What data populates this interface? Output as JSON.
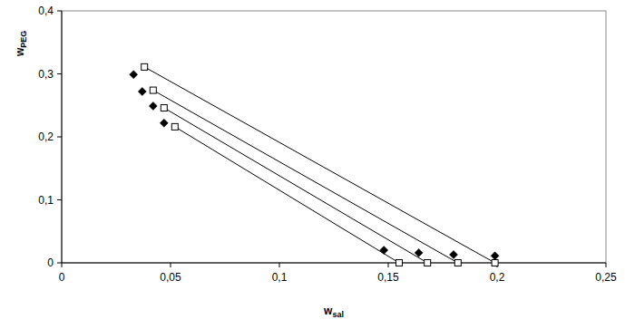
{
  "chart_data": {
    "type": "scatter",
    "xlabel": "wsal",
    "ylabel": "wPEG",
    "xlim": [
      0,
      0.25
    ],
    "ylim": [
      0,
      0.4
    ],
    "xticks": [
      0,
      {
        "value": 0.05,
        "label": "0,05"
      },
      {
        "value": 0.1,
        "label": "0,1"
      },
      {
        "value": 0.15,
        "label": "0,15"
      },
      {
        "value": 0.2,
        "label": "0,2"
      },
      {
        "value": 0.25,
        "label": "0,25"
      }
    ],
    "yticks": [
      0,
      {
        "value": 0.1,
        "label": "0,1"
      },
      {
        "value": 0.2,
        "label": "0,2"
      },
      {
        "value": 0.3,
        "label": "0,3"
      },
      {
        "value": 0.4,
        "label": "0,4"
      }
    ],
    "grid": false,
    "series": [
      {
        "type": "scatter",
        "marker": "diamond",
        "color": "#000000",
        "x": [
          0.033,
          0.037,
          0.042,
          0.047,
          0.148,
          0.164,
          0.18,
          0.199
        ],
        "values": [
          0.299,
          0.272,
          0.249,
          0.222,
          0.02,
          0.016,
          0.013,
          0.011
        ]
      },
      {
        "type": "line",
        "marker": "square",
        "line_style": "solid",
        "color": "#000000",
        "x": [
          0.038,
          0.199
        ],
        "values": [
          0.311,
          0.0
        ]
      },
      {
        "type": "line",
        "marker": "square",
        "line_style": "solid",
        "color": "#000000",
        "x": [
          0.042,
          0.182
        ],
        "values": [
          0.274,
          0.0
        ]
      },
      {
        "type": "line",
        "marker": "square",
        "line_style": "solid",
        "color": "#000000",
        "x": [
          0.047,
          0.168
        ],
        "values": [
          0.246,
          0.0
        ]
      },
      {
        "type": "line",
        "marker": "square",
        "line_style": "solid",
        "color": "#000000",
        "x": [
          0.052,
          0.155
        ],
        "values": [
          0.216,
          0.0
        ]
      }
    ]
  }
}
